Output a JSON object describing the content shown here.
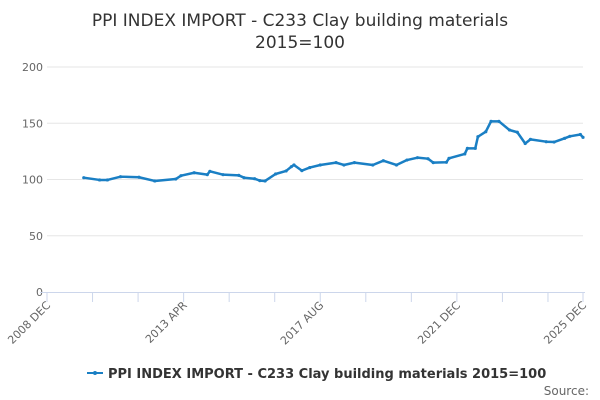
{
  "chart_data": {
    "type": "line",
    "title": "PPI INDEX IMPORT - C233 Clay building materials",
    "subtitle": "2015=100",
    "xlabel": "",
    "ylabel": "",
    "ylim": [
      0,
      200
    ],
    "yticks": [
      0,
      50,
      100,
      150,
      200
    ],
    "xlim": [
      "2008-12",
      "2025-12"
    ],
    "xticks": [
      "2008 DEC",
      "2013 APR",
      "2017 AUG",
      "2021 DEC",
      "2025 DEC"
    ],
    "xtick_dates": [
      "2008-12",
      "2013-04",
      "2017-08",
      "2021-12",
      "2025-12"
    ],
    "grid": "horizontal",
    "legend_position": "bottom",
    "source_label": "Source:",
    "series": [
      {
        "name": "PPI INDEX IMPORT - C233 Clay building materials 2015=100",
        "color": "#1a7fc4",
        "points": [
          [
            "2010-02",
            101.6
          ],
          [
            "2010-08",
            99.6
          ],
          [
            "2010-11",
            99.6
          ],
          [
            "2011-04",
            102.5
          ],
          [
            "2011-11",
            102.0
          ],
          [
            "2012-05",
            98.7
          ],
          [
            "2013-01",
            100.4
          ],
          [
            "2013-03",
            103.4
          ],
          [
            "2013-08",
            106.0
          ],
          [
            "2014-01",
            104.3
          ],
          [
            "2014-02",
            107.3
          ],
          [
            "2014-07",
            104.3
          ],
          [
            "2015-01",
            103.7
          ],
          [
            "2015-03",
            101.6
          ],
          [
            "2015-07",
            100.7
          ],
          [
            "2015-09",
            99.0
          ],
          [
            "2015-11",
            98.7
          ],
          [
            "2016-03",
            104.9
          ],
          [
            "2016-07",
            107.6
          ],
          [
            "2016-09",
            111.4
          ],
          [
            "2016-10",
            112.9
          ],
          [
            "2017-01",
            107.9
          ],
          [
            "2017-04",
            110.6
          ],
          [
            "2017-08",
            112.9
          ],
          [
            "2018-02",
            115.0
          ],
          [
            "2018-05",
            112.9
          ],
          [
            "2018-09",
            115.0
          ],
          [
            "2019-04",
            112.9
          ],
          [
            "2019-08",
            116.7
          ],
          [
            "2020-01",
            112.9
          ],
          [
            "2020-05",
            117.3
          ],
          [
            "2020-09",
            119.4
          ],
          [
            "2021-01",
            118.5
          ],
          [
            "2021-03",
            115.0
          ],
          [
            "2021-08",
            115.3
          ],
          [
            "2021-09",
            118.8
          ],
          [
            "2022-03",
            122.7
          ],
          [
            "2022-04",
            127.7
          ],
          [
            "2022-07",
            127.7
          ],
          [
            "2022-08",
            138.0
          ],
          [
            "2022-11",
            142.5
          ],
          [
            "2023-01",
            151.7
          ],
          [
            "2023-04",
            151.7
          ],
          [
            "2023-08",
            144.0
          ],
          [
            "2023-11",
            142.0
          ],
          [
            "2024-02",
            132.0
          ],
          [
            "2024-04",
            135.7
          ],
          [
            "2024-10",
            133.6
          ],
          [
            "2025-01",
            133.3
          ],
          [
            "2025-05",
            136.6
          ],
          [
            "2025-07",
            138.4
          ],
          [
            "2025-11",
            140.0
          ],
          [
            "2025-12",
            137.5
          ]
        ]
      }
    ]
  }
}
